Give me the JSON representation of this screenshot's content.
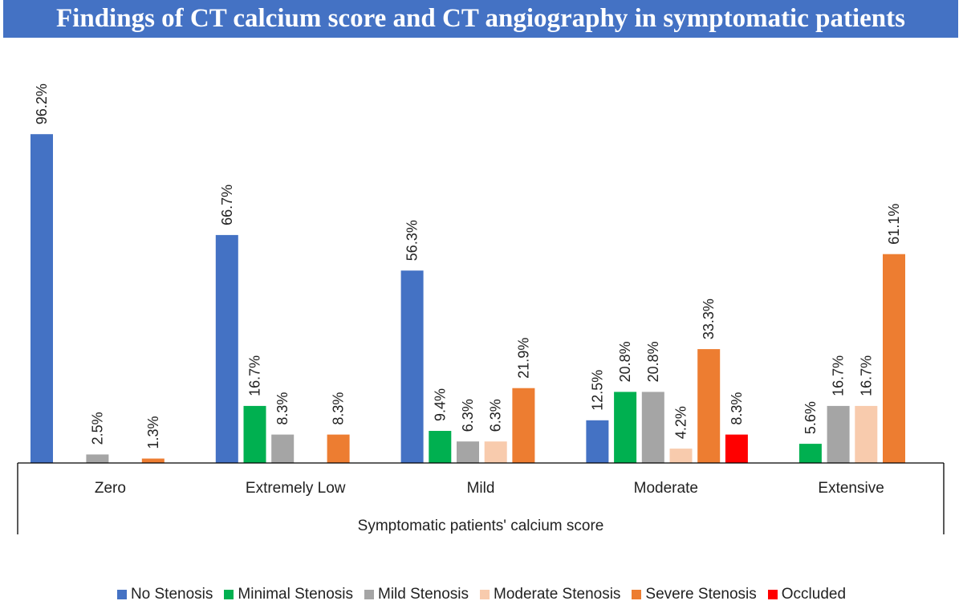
{
  "chart_data": {
    "type": "bar",
    "title": "Findings of CT calcium score and CT angiography in symptomatic patients",
    "xlabel": "Symptomatic patients' calcium score",
    "ylabel": "",
    "ylim": [
      0,
      100
    ],
    "grid": false,
    "legend_position": "bottom",
    "categories": [
      "Zero",
      "Extremely Low",
      "Mild",
      "Moderate",
      "Extensive"
    ],
    "series": [
      {
        "name": "No Stenosis",
        "color": "#4472c4",
        "values": [
          96.2,
          66.7,
          56.3,
          12.5,
          null
        ],
        "labels": [
          "96.2%",
          "66.7%",
          "56.3%",
          "12.5%",
          null
        ]
      },
      {
        "name": "Minimal Stenosis",
        "color": "#00b050",
        "values": [
          null,
          16.7,
          9.4,
          20.8,
          5.6
        ],
        "labels": [
          null,
          "16.7%",
          "9.4%",
          "20.8%",
          "5.6%"
        ]
      },
      {
        "name": "Mild Stenosis",
        "color": "#a5a5a5",
        "values": [
          2.5,
          8.3,
          6.3,
          20.8,
          16.7
        ],
        "labels": [
          "2.5%",
          "8.3%",
          "6.3%",
          "20.8%",
          "16.7%"
        ]
      },
      {
        "name": "Moderate Stenosis",
        "color": "#f8cbad",
        "values": [
          null,
          null,
          6.3,
          4.2,
          16.7
        ],
        "labels": [
          null,
          null,
          "6.3%",
          "4.2%",
          "16.7%"
        ]
      },
      {
        "name": "Severe Stenosis",
        "color": "#ed7d31",
        "values": [
          1.3,
          8.3,
          21.9,
          33.3,
          61.1
        ],
        "labels": [
          "1.3%",
          "8.3%",
          "21.9%",
          "33.3%",
          "61.1%"
        ]
      },
      {
        "name": "Occluded",
        "color": "#ff0000",
        "values": [
          null,
          null,
          null,
          8.3,
          null
        ],
        "labels": [
          null,
          null,
          null,
          "8.3%",
          null
        ]
      }
    ]
  }
}
